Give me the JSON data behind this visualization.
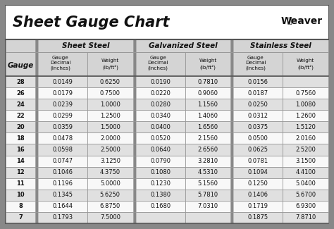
{
  "title": "Sheet Gauge Chart",
  "bg_outer": "#888888",
  "bg_white": "#ffffff",
  "bg_title": "#ffffff",
  "row_alt": "#e0e0e0",
  "row_white": "#f8f8f8",
  "header_bg": "#d4d4d4",
  "divider_thick": "#555555",
  "divider_thin": "#999999",
  "gauges": [
    28,
    26,
    24,
    22,
    20,
    18,
    16,
    14,
    12,
    11,
    10,
    8,
    7
  ],
  "sheet_steel_dec": [
    "0.0149",
    "0.0179",
    "0.0239",
    "0.0299",
    "0.0359",
    "0.0478",
    "0.0598",
    "0.0747",
    "0.1046",
    "0.1196",
    "0.1345",
    "0.1644",
    "0.1793"
  ],
  "sheet_steel_wt": [
    "0.6250",
    "0.7500",
    "1.0000",
    "1.2500",
    "1.5000",
    "2.0000",
    "2.5000",
    "3.1250",
    "4.3750",
    "5.0000",
    "5.6250",
    "6.8750",
    "7.5000"
  ],
  "galv_dec": [
    "0.0190",
    "0.0220",
    "0.0280",
    "0.0340",
    "0.0400",
    "0.0520",
    "0.0640",
    "0.0790",
    "0.1080",
    "0.1230",
    "0.1380",
    "0.1680",
    ""
  ],
  "galv_wt": [
    "0.7810",
    "0.9060",
    "1.1560",
    "1.4060",
    "1.6560",
    "2.1560",
    "2.6560",
    "3.2810",
    "4.5310",
    "5.1560",
    "5.7810",
    "7.0310",
    ""
  ],
  "stain_dec": [
    "0.0156",
    "0.0187",
    "0.0250",
    "0.0312",
    "0.0375",
    "0.0500",
    "0.0625",
    "0.0781",
    "0.1094",
    "0.1250",
    "0.1406",
    "0.1719",
    "0.1875"
  ],
  "stain_wt": [
    "",
    "0.7560",
    "1.0080",
    "1.2600",
    "1.5120",
    "2.0160",
    "2.5200",
    "3.1500",
    "4.4100",
    "5.0400",
    "5.6700",
    "6.9300",
    "7.8710"
  ],
  "fig_w": 4.74,
  "fig_h": 3.25,
  "dpi": 100
}
